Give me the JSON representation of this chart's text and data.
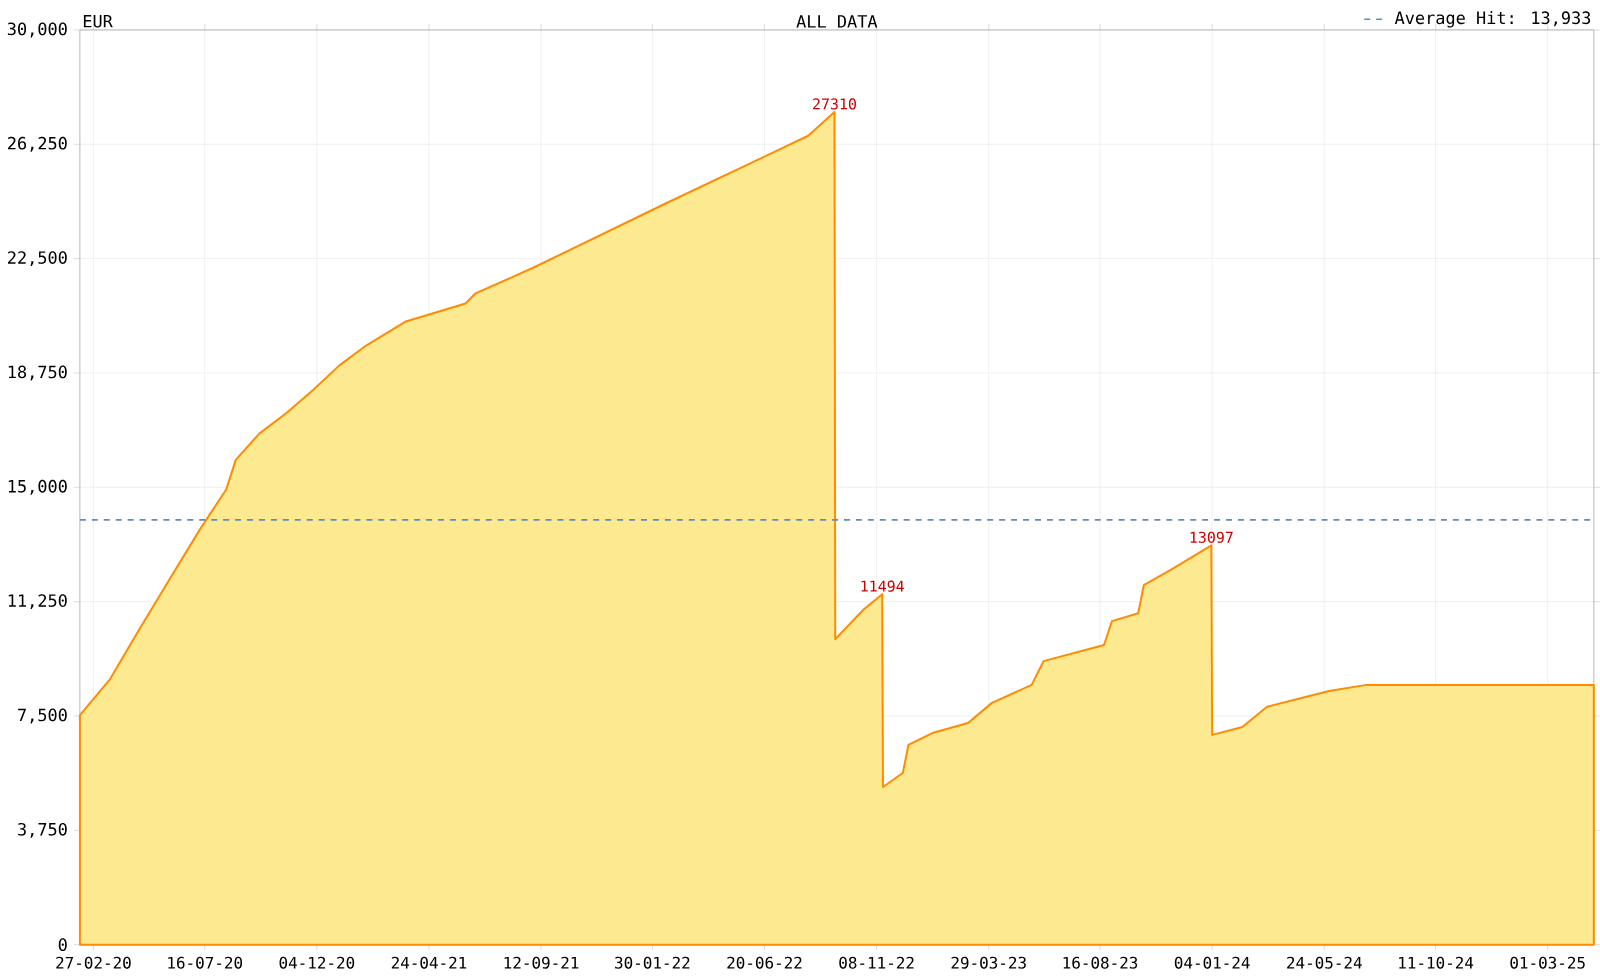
{
  "chart_data": {
    "type": "area",
    "title": "EUR",
    "subtitle": "ALL DATA",
    "x": [
      "2020-02-10",
      "2020-03-19",
      "2020-04-25",
      "2020-06-02",
      "2020-07-10",
      "2020-08-12",
      "2020-08-24",
      "2020-09-23",
      "2020-10-26",
      "2020-11-30",
      "2021-01-01",
      "2021-02-04",
      "2021-03-26",
      "2021-06-09",
      "2021-06-21",
      "2021-09-02",
      "2021-11-24",
      "2022-02-15",
      "2022-05-27",
      "2022-08-14",
      "2022-09-16",
      "2022-09-17",
      "2022-10-23",
      "2022-11-15",
      "2022-11-16",
      "2022-12-11",
      "2022-12-18",
      "2023-01-17",
      "2023-03-03",
      "2023-04-02",
      "2023-05-22",
      "2023-06-06",
      "2023-08-21",
      "2023-08-31",
      "2023-10-03",
      "2023-10-10",
      "2023-11-14",
      "2024-01-03",
      "2024-01-04",
      "2024-02-11",
      "2024-03-13",
      "2024-05-30",
      "2024-07-16",
      "2025-04-28"
    ],
    "values": [
      7530,
      8710,
      10350,
      11990,
      13620,
      14930,
      15900,
      16770,
      17420,
      18210,
      18990,
      19650,
      20440,
      21030,
      21350,
      22200,
      23250,
      24300,
      25550,
      26530,
      27310,
      10020,
      11000,
      11494,
      5170,
      5630,
      6550,
      6940,
      7270,
      7930,
      8520,
      9300,
      9830,
      10610,
      10870,
      11790,
      12310,
      13097,
      6880,
      7140,
      7800,
      8320,
      8520,
      8520
    ],
    "color": "#fde98f",
    "xlim": [
      "2020-02-10",
      "2025-04-28"
    ],
    "xticks": [
      {
        "value": "2020-02-27",
        "label": "27-02-20"
      },
      {
        "value": "2020-07-16",
        "label": "16-07-20"
      },
      {
        "value": "2020-12-04",
        "label": "04-12-20"
      },
      {
        "value": "2021-04-24",
        "label": "24-04-21"
      },
      {
        "value": "2021-09-12",
        "label": "12-09-21"
      },
      {
        "value": "2022-01-30",
        "label": "30-01-22"
      },
      {
        "value": "2022-06-20",
        "label": "20-06-22"
      },
      {
        "value": "2022-11-08",
        "label": "08-11-22"
      },
      {
        "value": "2023-03-29",
        "label": "29-03-23"
      },
      {
        "value": "2023-08-16",
        "label": "16-08-23"
      },
      {
        "value": "2024-01-04",
        "label": "04-01-24"
      },
      {
        "value": "2024-05-24",
        "label": "24-05-24"
      },
      {
        "value": "2024-10-11",
        "label": "11-10-24"
      },
      {
        "value": "2025-03-01",
        "label": "01-03-25"
      }
    ],
    "ylim": [
      0,
      30000
    ],
    "yticks": [
      0,
      {
        "value": 3750,
        "label": "3,750"
      },
      {
        "value": 7500,
        "label": "7,500"
      },
      {
        "value": 11250,
        "label": "11,250"
      },
      {
        "value": 15000,
        "label": "15,000"
      },
      {
        "value": 18750,
        "label": "18,750"
      },
      {
        "value": 22500,
        "label": "22,500"
      },
      {
        "value": 26250,
        "label": "26,250"
      },
      {
        "value": 30000,
        "label": "30,000"
      }
    ],
    "grid": true,
    "ref_lines": [
      {
        "axis": "y",
        "value": 13933,
        "label": "Average Hit: 13,933",
        "line_style": "dashed",
        "color": "#5a8fbf"
      }
    ],
    "annotations": [
      {
        "text": "27310",
        "x": "2022-09-16",
        "y": 27310
      },
      {
        "text": "11494",
        "x": "2022-11-15",
        "y": 11494
      },
      {
        "text": "13097",
        "x": "2024-01-03",
        "y": 13097
      }
    ]
  }
}
